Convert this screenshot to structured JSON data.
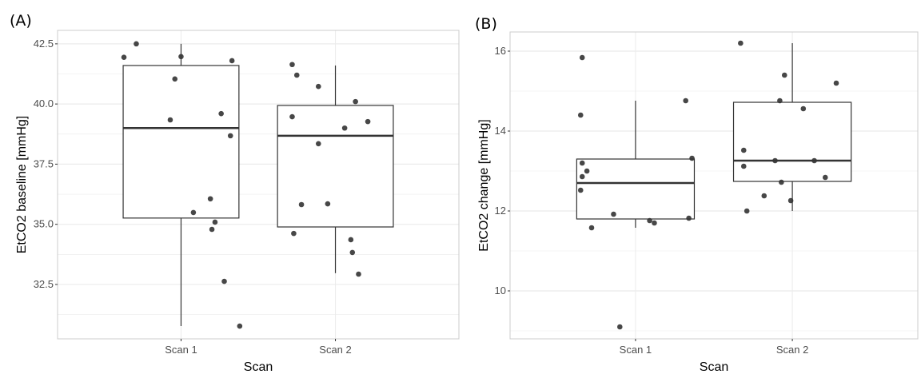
{
  "chart_data": [
    {
      "type": "box",
      "panel_label": "(A)",
      "xlabel": "Scan",
      "ylabel": "EtCO2 baseline [mmHg]",
      "categories": [
        "Scan 1",
        "Scan 2"
      ],
      "yticks": [
        "32.5",
        "35.0",
        "37.5",
        "40.0",
        "42.5"
      ],
      "ylim": [
        30.24,
        43.06
      ],
      "grid": true,
      "boxes": [
        {
          "category": "Scan 1",
          "whisker_low": 30.77,
          "q1": 35.26,
          "median": 39.0,
          "q3": 41.6,
          "whisker_high": 42.5
        },
        {
          "category": "Scan 2",
          "whisker_low": 32.97,
          "q1": 34.89,
          "median": 38.68,
          "q3": 39.94,
          "whisker_high": 41.6
        }
      ],
      "points": [
        {
          "category": "Scan 1",
          "jitter": [
            -0.37,
            -0.29,
            0.0,
            0.33,
            -0.04,
            -0.07,
            0.26,
            0.32,
            0.19,
            0.08,
            0.22,
            0.2,
            0.28,
            0.38
          ],
          "values": [
            41.94,
            42.5,
            41.97,
            41.8,
            41.04,
            39.34,
            39.6,
            38.68,
            36.06,
            35.49,
            35.09,
            34.79,
            32.63,
            30.77
          ]
        },
        {
          "category": "Scan 2",
          "jitter": [
            -0.28,
            -0.25,
            -0.11,
            0.13,
            -0.28,
            0.21,
            0.06,
            -0.11,
            -0.22,
            -0.05,
            -0.27,
            0.1,
            0.11,
            0.15
          ],
          "values": [
            41.64,
            41.2,
            40.73,
            40.1,
            39.47,
            39.27,
            39.0,
            38.35,
            35.82,
            35.85,
            34.62,
            34.36,
            33.83,
            32.93
          ]
        }
      ]
    },
    {
      "type": "box",
      "panel_label": "(B)",
      "xlabel": "Scan",
      "ylabel": "EtCO2 change [mmHg]",
      "categories": [
        "Scan 1",
        "Scan 2"
      ],
      "yticks": [
        "10",
        "12",
        "14",
        "16"
      ],
      "ylim": [
        8.8,
        16.48
      ],
      "grid": true,
      "boxes": [
        {
          "category": "Scan 1",
          "whisker_low": 11.58,
          "q1": 11.8,
          "median": 12.7,
          "q3": 13.3,
          "whisker_high": 14.76
        },
        {
          "category": "Scan 2",
          "whisker_low": 12.0,
          "q1": 12.74,
          "median": 13.26,
          "q3": 14.72,
          "whisker_high": 16.2
        }
      ],
      "points": [
        {
          "category": "Scan 1",
          "jitter": [
            -0.34,
            -0.35,
            0.32,
            0.36,
            -0.34,
            -0.31,
            -0.34,
            -0.35,
            -0.14,
            -0.28,
            0.09,
            0.12,
            0.34,
            -0.1
          ],
          "values": [
            15.84,
            14.4,
            14.76,
            13.32,
            13.2,
            13.0,
            12.86,
            12.52,
            11.92,
            11.58,
            11.76,
            11.7,
            11.82,
            9.1
          ]
        },
        {
          "category": "Scan 2",
          "jitter": [
            -0.33,
            -0.05,
            0.28,
            -0.08,
            0.07,
            -0.31,
            -0.31,
            -0.11,
            0.14,
            0.21,
            -0.07,
            -0.18,
            -0.01,
            -0.29
          ],
          "values": [
            16.2,
            15.4,
            15.2,
            14.76,
            14.56,
            13.52,
            13.12,
            13.26,
            13.26,
            12.84,
            12.72,
            12.38,
            12.26,
            12.0
          ]
        }
      ]
    }
  ],
  "colors": {
    "point": "#333333",
    "box": "#333333",
    "grid": "#ebebeb",
    "panel_border": "#cccccc"
  }
}
